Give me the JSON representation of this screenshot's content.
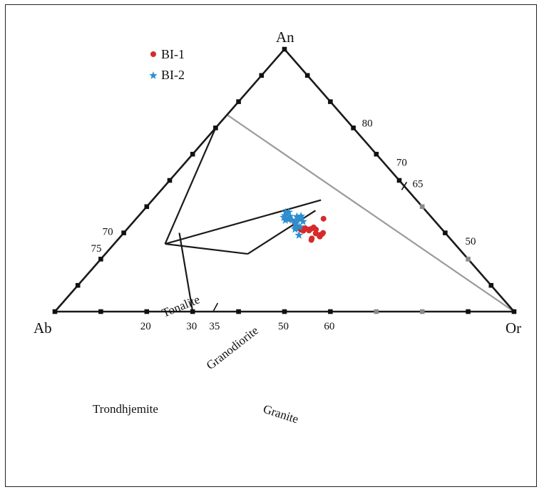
{
  "chart_data": {
    "type": "ternary-scatter",
    "vertices": {
      "top": "An",
      "left": "Ab",
      "right": "Or"
    },
    "legend": [
      {
        "name": "BI-1",
        "marker": "circle",
        "color": "#d62a2a"
      },
      {
        "name": "BI-2",
        "marker": "star",
        "color": "#2b8fd0"
      }
    ],
    "base_tick_labels": [
      {
        "value": 20,
        "text": "20"
      },
      {
        "value": 30,
        "text": "30"
      },
      {
        "value": 35,
        "text": "35"
      },
      {
        "value": 50,
        "text": "50"
      },
      {
        "value": 60,
        "text": "60"
      }
    ],
    "right_edge_tick_labels": [
      {
        "value": 80,
        "text": "80"
      },
      {
        "value": 70,
        "text": "70"
      },
      {
        "value": 65,
        "text": "65"
      },
      {
        "value": 50,
        "text": "50"
      }
    ],
    "left_edge_tick_labels": [
      {
        "value": 70,
        "text": "70"
      },
      {
        "value": 75,
        "text": "75"
      }
    ],
    "fields": [
      "Tonalite",
      "Granodiorite",
      "Trondhjemite",
      "Granite"
    ],
    "boundaries": [
      {
        "name": "tonalite-trondhjemite",
        "points": [
          [
            30,
            70,
            0
          ],
          [
            63.1,
            25.8,
            11.1
          ]
        ]
      },
      {
        "name": "tonalite-granodiorite",
        "points": [
          [
            63.1,
            25.8,
            11.1
          ],
          [
            20.8,
            42.5,
            36.7
          ]
        ]
      },
      {
        "name": "trondhjemite-granite",
        "points": [
          [
            57.9,
            30,
            12.1
          ],
          [
            70,
            0,
            30
          ]
        ]
      },
      {
        "name": "granodiorite-base",
        "points": [
          [
            63.1,
            25.8,
            11.1
          ],
          [
            47,
            22,
            31
          ]
        ]
      },
      {
        "name": "granodiorite-granite",
        "points": [
          [
            47,
            22,
            31
          ],
          [
            24,
            38.5,
            37.5
          ]
        ]
      },
      {
        "name": "granite-threshold",
        "points": [
          [
            25,
            75,
            0
          ],
          [
            0,
            0,
            100
          ]
        ],
        "color": "#9a9a9a"
      }
    ],
    "series": [
      {
        "name": "BI-1",
        "points_an_or": [
          [
            35.3,
            33.4
          ],
          [
            33.9,
            35.3
          ],
          [
            32.1,
            37.0
          ],
          [
            31.6,
            37.6
          ],
          [
            31.2,
            38.0
          ],
          [
            31.8,
            38.6
          ],
          [
            30.8,
            38.7
          ],
          [
            31.3,
            39.5
          ],
          [
            31.5,
            40.0
          ],
          [
            30.9,
            39.9
          ],
          [
            31.3,
            41.2
          ],
          [
            32.1,
            40.3
          ],
          [
            29.8,
            41.9
          ],
          [
            29.2,
            42.9
          ],
          [
            29.5,
            43.4
          ],
          [
            28.6,
            43.4
          ],
          [
            30.0,
            43.4
          ],
          [
            27.9,
            42.0
          ],
          [
            27.3,
            42.2
          ],
          [
            35.4,
            40.8
          ]
        ]
      },
      {
        "name": "BI-2",
        "points_an_or": [
          [
            37.9,
            31.3
          ],
          [
            37.9,
            32.0
          ],
          [
            36.6,
            31.8
          ],
          [
            35.9,
            31.9
          ],
          [
            36.3,
            33.0
          ],
          [
            35.2,
            33.3
          ],
          [
            34.9,
            34.2
          ],
          [
            36.4,
            35.4
          ],
          [
            35.5,
            35.3
          ],
          [
            35.7,
            35.8
          ],
          [
            34.1,
            35.5
          ],
          [
            34.3,
            36.9
          ],
          [
            33.4,
            35.7
          ],
          [
            32.3,
            37.2
          ],
          [
            31.4,
            36.6
          ],
          [
            31.9,
            36.5
          ],
          [
            29.1,
            38.6
          ],
          [
            34.8,
            32.8
          ],
          [
            36.2,
            34.6
          ]
        ]
      }
    ]
  }
}
